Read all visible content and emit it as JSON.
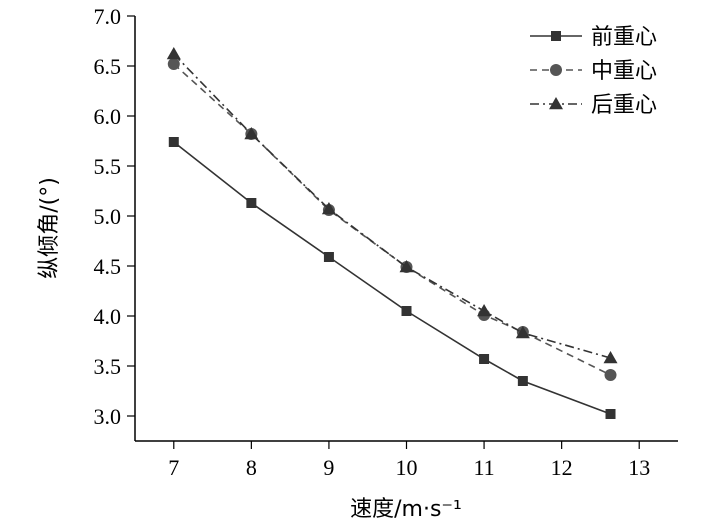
{
  "chart_data": {
    "type": "line",
    "xlabel": "速度/m·s⁻¹",
    "ylabel": "纵倾角/(°)",
    "xlim": [
      6.5,
      13.5
    ],
    "ylim": [
      2.75,
      7.0
    ],
    "xticks": [
      7,
      8,
      9,
      10,
      11,
      12,
      13
    ],
    "yticks": [
      3.0,
      3.5,
      4.0,
      4.5,
      5.0,
      5.5,
      6.0,
      6.5,
      7.0
    ],
    "ytick_labels": [
      "3.0",
      "3.5",
      "4.0",
      "4.5",
      "5.0",
      "5.5",
      "6.0",
      "6.5",
      "7.0"
    ],
    "grid": false,
    "legend_position": "top-right",
    "series": [
      {
        "name": "前重心",
        "marker": "square",
        "line_style": "solid",
        "color": "#333333",
        "x": [
          7,
          8,
          9,
          10,
          11,
          11.5,
          12.63
        ],
        "y": [
          5.74,
          5.13,
          4.59,
          4.05,
          3.57,
          3.35,
          3.02
        ]
      },
      {
        "name": "中重心",
        "marker": "circle",
        "line_style": "dashed",
        "color": "#555555",
        "x": [
          7,
          8,
          9,
          10,
          11,
          11.5,
          12.63
        ],
        "y": [
          6.52,
          5.82,
          5.06,
          4.49,
          4.01,
          3.84,
          3.41
        ]
      },
      {
        "name": "后重心",
        "marker": "triangle",
        "line_style": "dashdot",
        "color": "#333333",
        "x": [
          7,
          8,
          9,
          10,
          11,
          11.5,
          12.63
        ],
        "y": [
          6.62,
          5.82,
          5.07,
          4.49,
          4.05,
          3.83,
          3.58
        ]
      }
    ]
  }
}
